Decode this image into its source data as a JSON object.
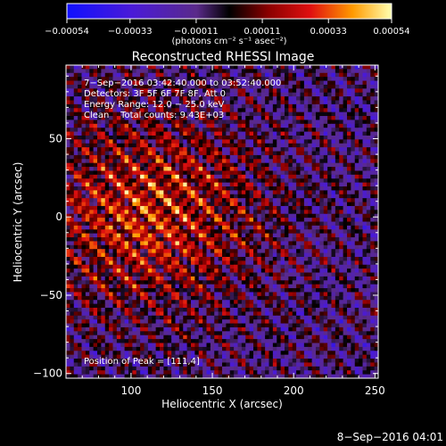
{
  "chart_data": {
    "type": "heatmap",
    "title": "Reconstructed RHESSI Image",
    "xlabel": "Heliocentric X (arcsec)",
    "ylabel": "Heliocentric Y (arcsec)",
    "xlim": [
      60,
      252
    ],
    "ylim": [
      -103,
      97
    ],
    "x_ticks": [
      100,
      150,
      200,
      250
    ],
    "y_ticks": [
      50,
      0,
      -50,
      -100
    ],
    "x_tick_labels": [
      "100",
      "150",
      "200",
      "250"
    ],
    "y_tick_labels": [
      "50",
      "0",
      "−50",
      "−100"
    ],
    "colorbar": {
      "range": [
        -0.00054,
        0.00054
      ],
      "ticks": [
        -0.00054,
        -0.00033,
        -0.00011,
        0.00011,
        0.00033,
        0.00054
      ],
      "tick_labels": [
        "−0.00054",
        "−0.00033",
        "−0.00011",
        "0.00011",
        "0.00033",
        "0.00054"
      ],
      "unit_label": "(photons cm⁻² s⁻¹ asec⁻²)"
    },
    "annotations": [
      "7−Sep−2016 03:42:40.000 to 03:52:40.000",
      "Detectors: 3F 5F 6F 7F 8F, Att 0",
      "Energy Range: 12.0 − 25.0 keV",
      "Clean    Total counts: 9.43E+03"
    ],
    "peak_label": "Position of Peak = [111,4]",
    "peak": [
      111,
      4
    ],
    "footer": "8−Sep−2016 04:01"
  }
}
